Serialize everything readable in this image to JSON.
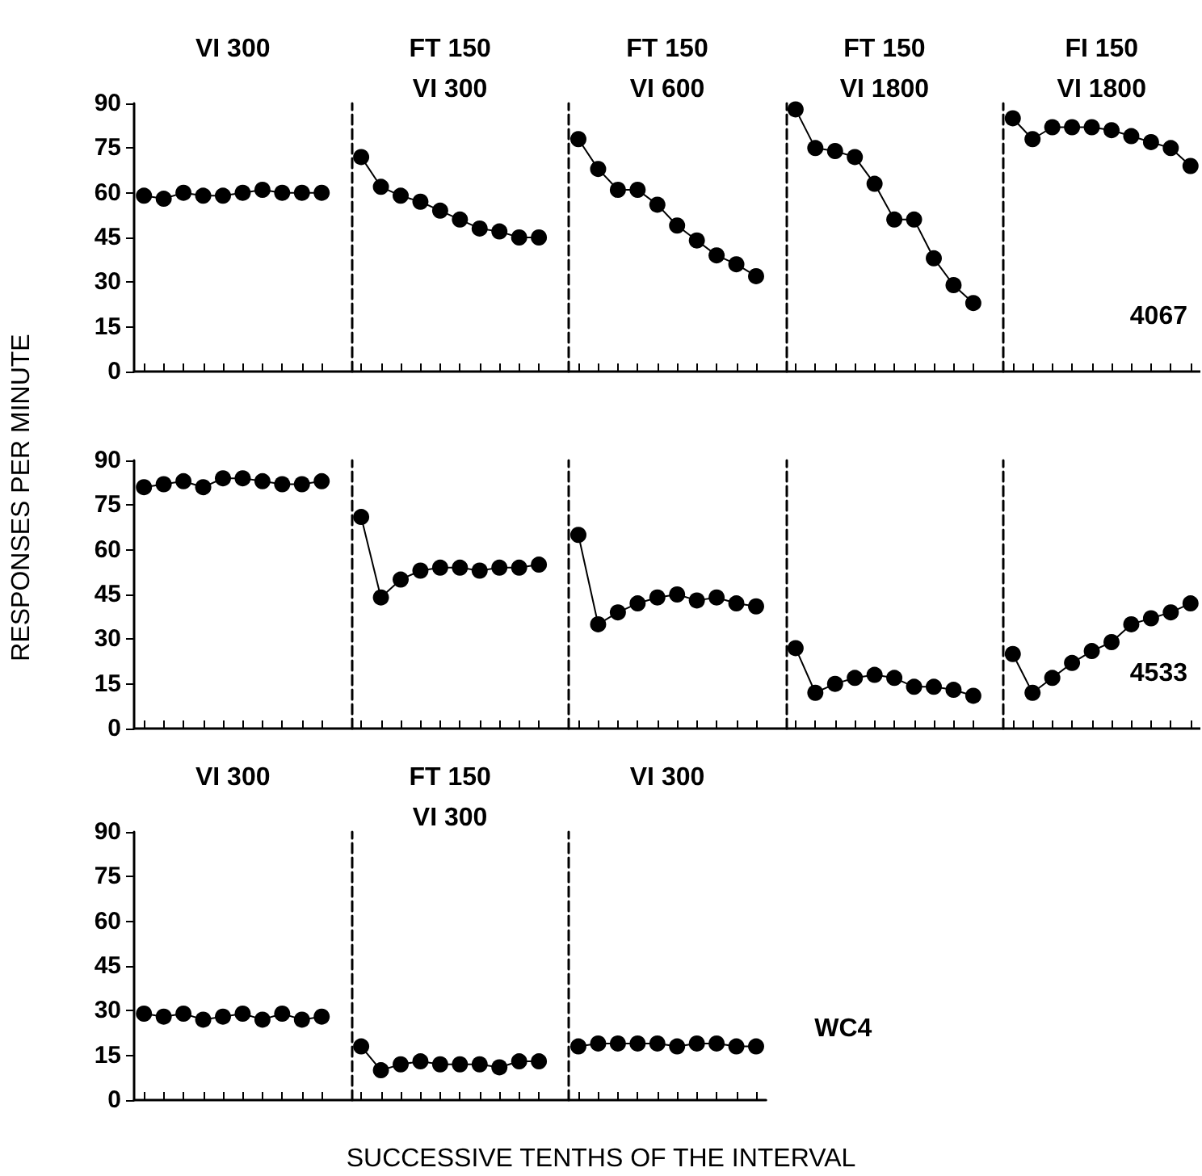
{
  "chart_data": [
    {
      "type": "line",
      "annotations": [
        "VI 300",
        "FT 150\nVI 300",
        "FT 150\nVI 600",
        "FT 150\nVI 1800",
        "FI 150\nVI 1800",
        "4067"
      ],
      "categories": [
        null,
        null,
        null,
        null,
        null,
        null,
        null,
        null,
        null,
        null,
        null,
        null,
        null,
        null,
        null,
        null,
        null,
        null,
        null,
        null,
        null,
        null,
        null,
        null,
        null,
        null,
        null,
        null,
        null,
        null,
        null,
        null,
        null,
        null,
        null,
        null,
        null,
        null,
        null,
        null,
        null,
        null,
        null,
        null,
        null,
        null,
        null,
        null,
        null,
        null,
        null,
        null,
        null,
        null
      ],
      "ylim": [
        0,
        90
      ],
      "yticks": [
        0,
        15,
        30,
        45,
        60,
        75,
        90
      ],
      "tick_labels": "y",
      "grid": false,
      "legend": false,
      "marker": "circle",
      "line_style": "solid",
      "series": [
        {
          "color": "#000000",
          "values": [
            59,
            58,
            60,
            59,
            59,
            60,
            61,
            60,
            60,
            60,
            null,
            null,
            null,
            null,
            null,
            null,
            null,
            null,
            null,
            null,
            null,
            null,
            null,
            null,
            null,
            null,
            null,
            null,
            null,
            null,
            null,
            null,
            null,
            null,
            null,
            null,
            null,
            null,
            null,
            null,
            null,
            null,
            null,
            null,
            null,
            null,
            null,
            null,
            null,
            null,
            null,
            null,
            null,
            null
          ]
        },
        {
          "color": "#000000",
          "values": [
            null,
            null,
            null,
            null,
            null,
            null,
            null,
            null,
            null,
            null,
            null,
            72,
            62,
            59,
            57,
            54,
            51,
            48,
            47,
            45,
            45,
            null,
            null,
            null,
            null,
            null,
            null,
            null,
            null,
            null,
            null,
            null,
            null,
            null,
            null,
            null,
            null,
            null,
            null,
            null,
            null,
            null,
            null,
            null,
            null,
            null,
            null,
            null,
            null,
            null,
            null,
            null,
            null,
            null
          ]
        },
        {
          "color": "#000000",
          "values": [
            null,
            null,
            null,
            null,
            null,
            null,
            null,
            null,
            null,
            null,
            null,
            null,
            null,
            null,
            null,
            null,
            null,
            null,
            null,
            null,
            null,
            null,
            78,
            68,
            61,
            61,
            56,
            49,
            44,
            39,
            36,
            32,
            null,
            null,
            null,
            null,
            null,
            null,
            null,
            null,
            null,
            null,
            null,
            null,
            null,
            null,
            null,
            null,
            null,
            null,
            null,
            null,
            null,
            null
          ]
        },
        {
          "color": "#000000",
          "values": [
            null,
            null,
            null,
            null,
            null,
            null,
            null,
            null,
            null,
            null,
            null,
            null,
            null,
            null,
            null,
            null,
            null,
            null,
            null,
            null,
            null,
            null,
            null,
            null,
            null,
            null,
            null,
            null,
            null,
            null,
            null,
            null,
            null,
            88,
            75,
            74,
            72,
            63,
            51,
            51,
            38,
            29,
            23,
            null,
            null,
            null,
            null,
            null,
            null,
            null,
            null,
            null,
            null,
            null
          ]
        },
        {
          "color": "#000000",
          "values": [
            null,
            null,
            null,
            null,
            null,
            null,
            null,
            null,
            null,
            null,
            null,
            null,
            null,
            null,
            null,
            null,
            null,
            null,
            null,
            null,
            null,
            null,
            null,
            null,
            null,
            null,
            null,
            null,
            null,
            null,
            null,
            null,
            null,
            null,
            null,
            null,
            null,
            null,
            null,
            null,
            null,
            null,
            null,
            null,
            85,
            78,
            82,
            82,
            82,
            81,
            79,
            77,
            75,
            69
          ]
        }
      ]
    },
    {
      "type": "line",
      "ylabel": "RESPONSES PER MINUTE",
      "annotations": [
        "4533"
      ],
      "categories": [
        null,
        null,
        null,
        null,
        null,
        null,
        null,
        null,
        null,
        null,
        null,
        null,
        null,
        null,
        null,
        null,
        null,
        null,
        null,
        null,
        null,
        null,
        null,
        null,
        null,
        null,
        null,
        null,
        null,
        null,
        null,
        null,
        null,
        null,
        null,
        null,
        null,
        null,
        null,
        null,
        null,
        null,
        null,
        null,
        null,
        null,
        null,
        null,
        null,
        null,
        null,
        null,
        null,
        null
      ],
      "ylim": [
        0,
        90
      ],
      "yticks": [
        0,
        15,
        30,
        45,
        60,
        75,
        90
      ],
      "tick_labels": "y",
      "grid": false,
      "legend": false,
      "marker": "circle",
      "line_style": "solid",
      "series": [
        {
          "color": "#000000",
          "values": [
            81,
            82,
            83,
            81,
            84,
            84,
            83,
            82,
            82,
            83,
            null,
            null,
            null,
            null,
            null,
            null,
            null,
            null,
            null,
            null,
            null,
            null,
            null,
            null,
            null,
            null,
            null,
            null,
            null,
            null,
            null,
            null,
            null,
            null,
            null,
            null,
            null,
            null,
            null,
            null,
            null,
            null,
            null,
            null,
            null,
            null,
            null,
            null,
            null,
            null,
            null,
            null,
            null,
            null
          ]
        },
        {
          "color": "#000000",
          "values": [
            null,
            null,
            null,
            null,
            null,
            null,
            null,
            null,
            null,
            null,
            null,
            71,
            44,
            50,
            53,
            54,
            54,
            53,
            54,
            54,
            55,
            null,
            null,
            null,
            null,
            null,
            null,
            null,
            null,
            null,
            null,
            null,
            null,
            null,
            null,
            null,
            null,
            null,
            null,
            null,
            null,
            null,
            null,
            null,
            null,
            null,
            null,
            null,
            null,
            null,
            null,
            null,
            null,
            null
          ]
        },
        {
          "color": "#000000",
          "values": [
            null,
            null,
            null,
            null,
            null,
            null,
            null,
            null,
            null,
            null,
            null,
            null,
            null,
            null,
            null,
            null,
            null,
            null,
            null,
            null,
            null,
            null,
            65,
            35,
            39,
            42,
            44,
            45,
            43,
            44,
            42,
            41,
            null,
            null,
            null,
            null,
            null,
            null,
            null,
            null,
            null,
            null,
            null,
            null,
            null,
            null,
            null,
            null,
            null,
            null,
            null,
            null,
            null,
            null
          ]
        },
        {
          "color": "#000000",
          "values": [
            null,
            null,
            null,
            null,
            null,
            null,
            null,
            null,
            null,
            null,
            null,
            null,
            null,
            null,
            null,
            null,
            null,
            null,
            null,
            null,
            null,
            null,
            null,
            null,
            null,
            null,
            null,
            null,
            null,
            null,
            null,
            null,
            null,
            27,
            12,
            15,
            17,
            18,
            17,
            14,
            14,
            13,
            11,
            null,
            null,
            null,
            null,
            null,
            null,
            null,
            null,
            null,
            null,
            null
          ]
        },
        {
          "color": "#000000",
          "values": [
            null,
            null,
            null,
            null,
            null,
            null,
            null,
            null,
            null,
            null,
            null,
            null,
            null,
            null,
            null,
            null,
            null,
            null,
            null,
            null,
            null,
            null,
            null,
            null,
            null,
            null,
            null,
            null,
            null,
            null,
            null,
            null,
            null,
            null,
            null,
            null,
            null,
            null,
            null,
            null,
            null,
            null,
            null,
            null,
            25,
            12,
            17,
            22,
            26,
            29,
            35,
            37,
            39,
            42
          ]
        }
      ]
    },
    {
      "type": "line",
      "xlabel": "SUCCESSIVE TENTHS OF THE INTERVAL",
      "annotations": [
        "VI 300",
        "FT 150\nVI 300",
        "VI 300",
        "WC4"
      ],
      "categories": [
        null,
        null,
        null,
        null,
        null,
        null,
        null,
        null,
        null,
        null,
        null,
        null,
        null,
        null,
        null,
        null,
        null,
        null,
        null,
        null,
        null,
        null,
        null,
        null,
        null,
        null,
        null,
        null,
        null,
        null,
        null,
        null
      ],
      "ylim": [
        0,
        90
      ],
      "yticks": [
        0,
        15,
        30,
        45,
        60,
        75,
        90
      ],
      "tick_labels": "y",
      "grid": false,
      "legend": false,
      "marker": "circle",
      "line_style": "solid",
      "series": [
        {
          "color": "#000000",
          "values": [
            29,
            28,
            29,
            27,
            28,
            29,
            27,
            29,
            27,
            28,
            null,
            null,
            null,
            null,
            null,
            null,
            null,
            null,
            null,
            null,
            null,
            null,
            null,
            null,
            null,
            null,
            null,
            null,
            null,
            null,
            null,
            null
          ]
        },
        {
          "color": "#000000",
          "values": [
            null,
            null,
            null,
            null,
            null,
            null,
            null,
            null,
            null,
            null,
            null,
            18,
            10,
            12,
            13,
            12,
            12,
            12,
            11,
            13,
            13,
            null,
            null,
            null,
            null,
            null,
            null,
            null,
            null,
            null,
            null,
            null
          ]
        },
        {
          "color": "#000000",
          "values": [
            null,
            null,
            null,
            null,
            null,
            null,
            null,
            null,
            null,
            null,
            null,
            null,
            null,
            null,
            null,
            null,
            null,
            null,
            null,
            null,
            null,
            null,
            18,
            19,
            19,
            19,
            19,
            18,
            19,
            19,
            18,
            18
          ]
        }
      ]
    }
  ]
}
